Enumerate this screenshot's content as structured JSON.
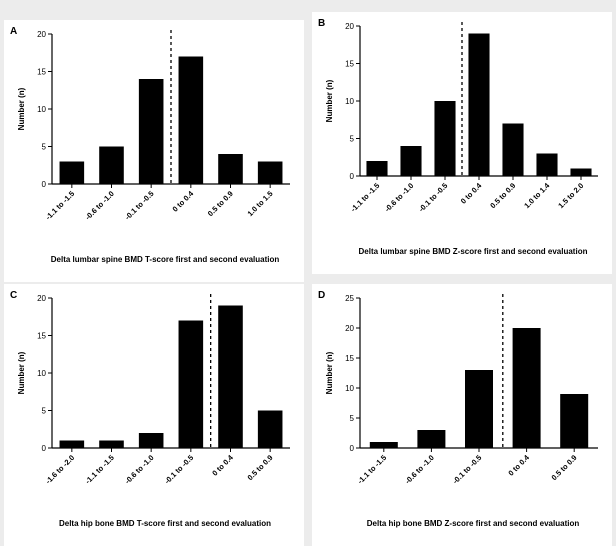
{
  "chart_data": [
    {
      "panel": "A",
      "type": "bar",
      "categories": [
        "-1.1 to -1.5",
        "-0.6 to -1.0",
        "-0.1 to -0.5",
        "0 to 0.4",
        "0.5 to 0.9",
        "1.0 to 1.5"
      ],
      "values": [
        3,
        5,
        14,
        17,
        4,
        3
      ],
      "ylabel": "Number (n)",
      "xlabel": "Delta lumbar spine BMD T-score first and second evaluation",
      "ylim": [
        0,
        20
      ],
      "yticks": [
        0,
        5,
        10,
        15,
        20
      ],
      "dashed_line_after_category": 2
    },
    {
      "panel": "B",
      "type": "bar",
      "categories": [
        "-1.1 to -1.5",
        "-0.6 to -1.0",
        "-0.1 to -0.5",
        "0 to 0.4",
        "0.5 to 0.9",
        "1.0 to 1.4",
        "1.5 to 2.0"
      ],
      "values": [
        2,
        4,
        10,
        19,
        7,
        3,
        1
      ],
      "ylabel": "Number (n)",
      "xlabel": "Delta lumbar spine BMD Z-score first and second evaluation",
      "ylim": [
        0,
        20
      ],
      "yticks": [
        0,
        5,
        10,
        15,
        20
      ],
      "dashed_line_after_category": 2
    },
    {
      "panel": "C",
      "type": "bar",
      "categories": [
        "-1.6 to -2.0",
        "-1.1 to -1.5",
        "-0.6 to -1.0",
        "-0.1 to -0.5",
        "0 to 0.4",
        "0.5 to 0.9"
      ],
      "values": [
        1,
        1,
        2,
        17,
        19,
        5
      ],
      "ylabel": "Number (n)",
      "xlabel": "Delta hip bone BMD T-score first and second evaluation",
      "ylim": [
        0,
        20
      ],
      "yticks": [
        0,
        5,
        10,
        15,
        20
      ],
      "dashed_line_after_category": 3
    },
    {
      "panel": "D",
      "type": "bar",
      "categories": [
        "-1.1 to -1.5",
        "-0.6 to -1.0",
        "-0.1 to -0.5",
        "0 to 0.4",
        "0.5 to 0.9"
      ],
      "values": [
        1,
        3,
        13,
        20,
        9
      ],
      "ylabel": "Number (n)",
      "xlabel": "Delta hip bone BMD Z-score first and second evaluation",
      "ylim": [
        0,
        25
      ],
      "yticks": [
        0,
        5,
        10,
        15,
        20,
        25
      ],
      "dashed_line_after_category": 2
    }
  ],
  "colors": {
    "bar": "#000000",
    "axis": "#000000",
    "background": "#ffffff"
  }
}
